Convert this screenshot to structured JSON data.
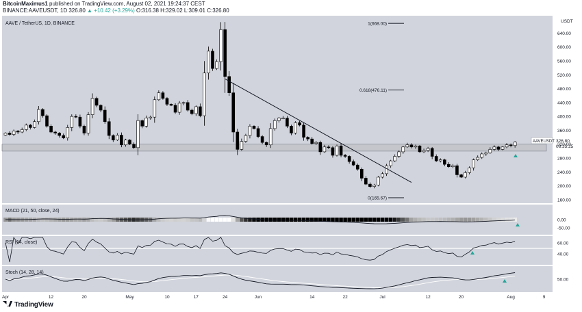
{
  "header": {
    "author": "BitcoinMaximus1",
    "published": "published on TradingView.com, August 02, 2021 19:24:37 CEST",
    "symbol_line": "BINANCE:AAVEUSDT, 1D",
    "ohlc_prefix": "326.80",
    "change": "▲ +10.42 (+3.29%)",
    "ohlc": "O:316.38 H:329.02 L:309.01 C:326.80"
  },
  "footer": {
    "brand": "TradingView"
  },
  "colors": {
    "panel_bg": "#d1d4dc",
    "candle": "#000000",
    "candle_up_fill": "#ffffff",
    "line": "#131722",
    "support_zone": "#c4c6cc",
    "marker": "#26a69a",
    "rsi_band": "#ffffff"
  },
  "chart_data": {
    "type": "candlestick",
    "title": "AAVE / TetherUS, 1D, BINANCE",
    "symbol": "AAVEUSDT",
    "last_price": "326.80",
    "countdown": "06:35:25",
    "y_unit": "USDT",
    "price_ticks": [
      "640.00",
      "600.00",
      "560.00",
      "520.00",
      "480.00",
      "440.00",
      "400.00",
      "360.00",
      "320.00",
      "280.00",
      "240.00",
      "200.00",
      "160.00"
    ],
    "ylim": [
      150,
      690
    ],
    "x_ticks": [
      {
        "label": "Apr",
        "day": 0
      },
      {
        "label": "12",
        "day": 11
      },
      {
        "label": "20",
        "day": 19
      },
      {
        "label": "May",
        "day": 30
      },
      {
        "label": "10",
        "day": 39
      },
      {
        "label": "17",
        "day": 46
      },
      {
        "label": "24",
        "day": 53
      },
      {
        "label": "Jun",
        "day": 61
      },
      {
        "label": "14",
        "day": 74
      },
      {
        "label": "22",
        "day": 82
      },
      {
        "label": "Jul",
        "day": 91
      },
      {
        "label": "12",
        "day": 102
      },
      {
        "label": "20",
        "day": 110
      },
      {
        "label": "Aug",
        "day": 122
      },
      {
        "label": "9",
        "day": 130
      }
    ],
    "closes": [
      352,
      348,
      358,
      355,
      362,
      375,
      368,
      385,
      420,
      402,
      372,
      355,
      352,
      345,
      338,
      368,
      400,
      398,
      372,
      352,
      405,
      452,
      432,
      418,
      385,
      345,
      332,
      346,
      318,
      332,
      320,
      310,
      388,
      372,
      395,
      398,
      448,
      468,
      452,
      435,
      432,
      412,
      438,
      440,
      418,
      408,
      428,
      402,
      525,
      588,
      538,
      558,
      650,
      515,
      468,
      355,
      305,
      328,
      345,
      372,
      365,
      342,
      325,
      318,
      365,
      388,
      395,
      395,
      372,
      352,
      382,
      375,
      340,
      335,
      322,
      325,
      298,
      312,
      310,
      288,
      315,
      288,
      285,
      270,
      260,
      248,
      222,
      205,
      198,
      202,
      225,
      235,
      258,
      272,
      285,
      298,
      312,
      318,
      312,
      315,
      298,
      302,
      308,
      285,
      272,
      275,
      262,
      255,
      258,
      232,
      225,
      238,
      252,
      275,
      282,
      292,
      295,
      305,
      312,
      305,
      312,
      318,
      316,
      326
    ],
    "fib_levels": [
      {
        "label": "1(668.00)",
        "value": 668
      },
      {
        "label": "0.618(476.11)",
        "value": 476.11
      },
      {
        "label": "0(165.67)",
        "value": 165.67
      }
    ],
    "trendline": [
      {
        "day": 53,
        "value": 508
      },
      {
        "day": 98,
        "value": 210
      }
    ],
    "support_zone": [
      300,
      320
    ],
    "indicators": [
      {
        "name": "MACD (21, 50, close, 24)",
        "ticks": [
          "0.00",
          "-50.00"
        ]
      },
      {
        "name": "RSI (14, close)",
        "ticks": [
          "60.00",
          "40.00"
        ]
      },
      {
        "name": "Stoch (14, 28, 14)",
        "ticks": [
          "50.00"
        ]
      }
    ]
  }
}
